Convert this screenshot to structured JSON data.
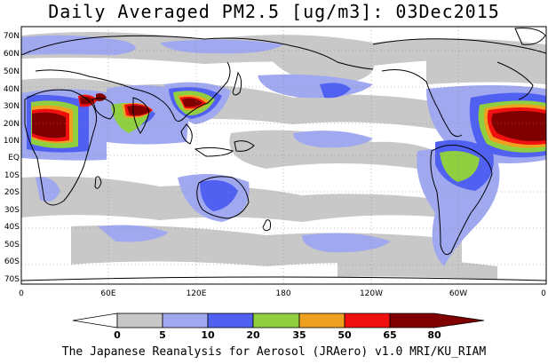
{
  "title": "Daily Averaged PM2.5 [ug/m3]: 03Dec2015",
  "footer": "The Japanese Reanalysis for Aerosol (JRAero) v1.0 MRI/KU_RIAM",
  "lat_labels": [
    "70N",
    "60N",
    "50N",
    "40N",
    "30N",
    "20N",
    "10N",
    "EQ",
    "10S",
    "20S",
    "30S",
    "40S",
    "50S",
    "60S",
    "70S"
  ],
  "lon_labels": [
    "0",
    "60E",
    "120E",
    "180",
    "120W",
    "60W",
    "0"
  ],
  "colorbar": {
    "labels": [
      "0",
      "5",
      "10",
      "20",
      "35",
      "50",
      "65",
      "80"
    ],
    "colors": [
      "#ffffff",
      "#c8c8c8",
      "#a0a8f0",
      "#5060f0",
      "#90d040",
      "#f0a020",
      "#f01010",
      "#800000"
    ]
  }
}
